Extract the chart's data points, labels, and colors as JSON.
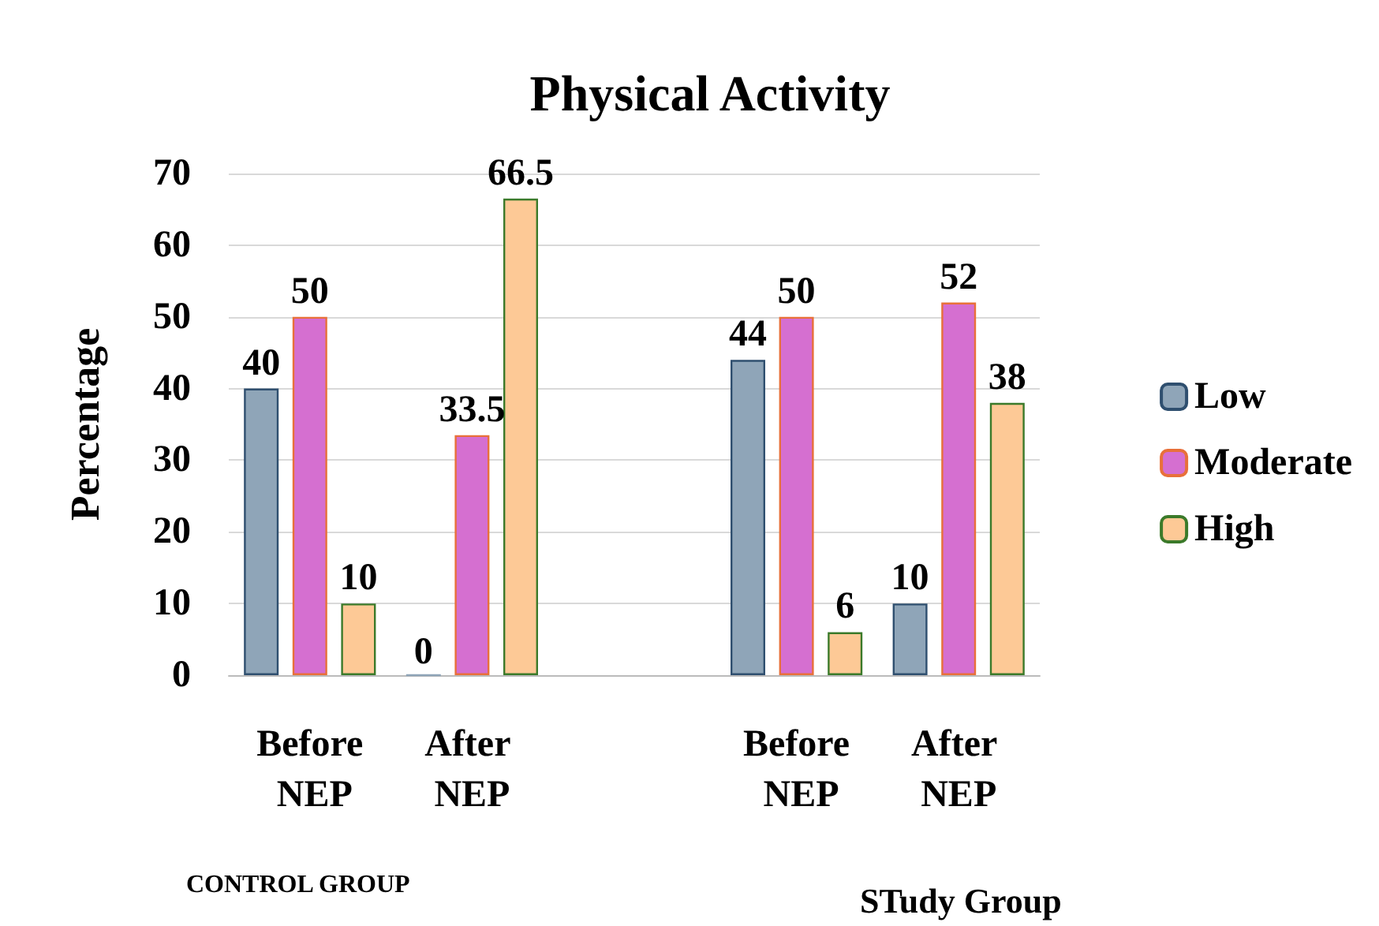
{
  "chart_data": {
    "type": "bar",
    "title": "Physical Activity",
    "ylabel": "Percentage",
    "categories": [
      "Before NEP",
      "After NEP",
      null,
      "Before NEP",
      "After NEP"
    ],
    "series": [
      {
        "name": "Low",
        "color": "#8fa5b8",
        "values": [
          40,
          0,
          null,
          44,
          10
        ]
      },
      {
        "name": "Moderate",
        "color": "#d56fd0",
        "values": [
          50,
          33.5,
          null,
          50,
          52
        ]
      },
      {
        "name": "High",
        "color": "#fdc996",
        "values": [
          10,
          66.5,
          null,
          6,
          38
        ]
      }
    ],
    "ylim": [
      0,
      70
    ],
    "yticks": [
      0,
      10,
      20,
      30,
      40,
      50,
      60,
      70
    ],
    "grid": "y",
    "legend": "right",
    "data_labels": true,
    "annotations": [
      "CONTROL GROUP",
      "STudy Group"
    ]
  }
}
